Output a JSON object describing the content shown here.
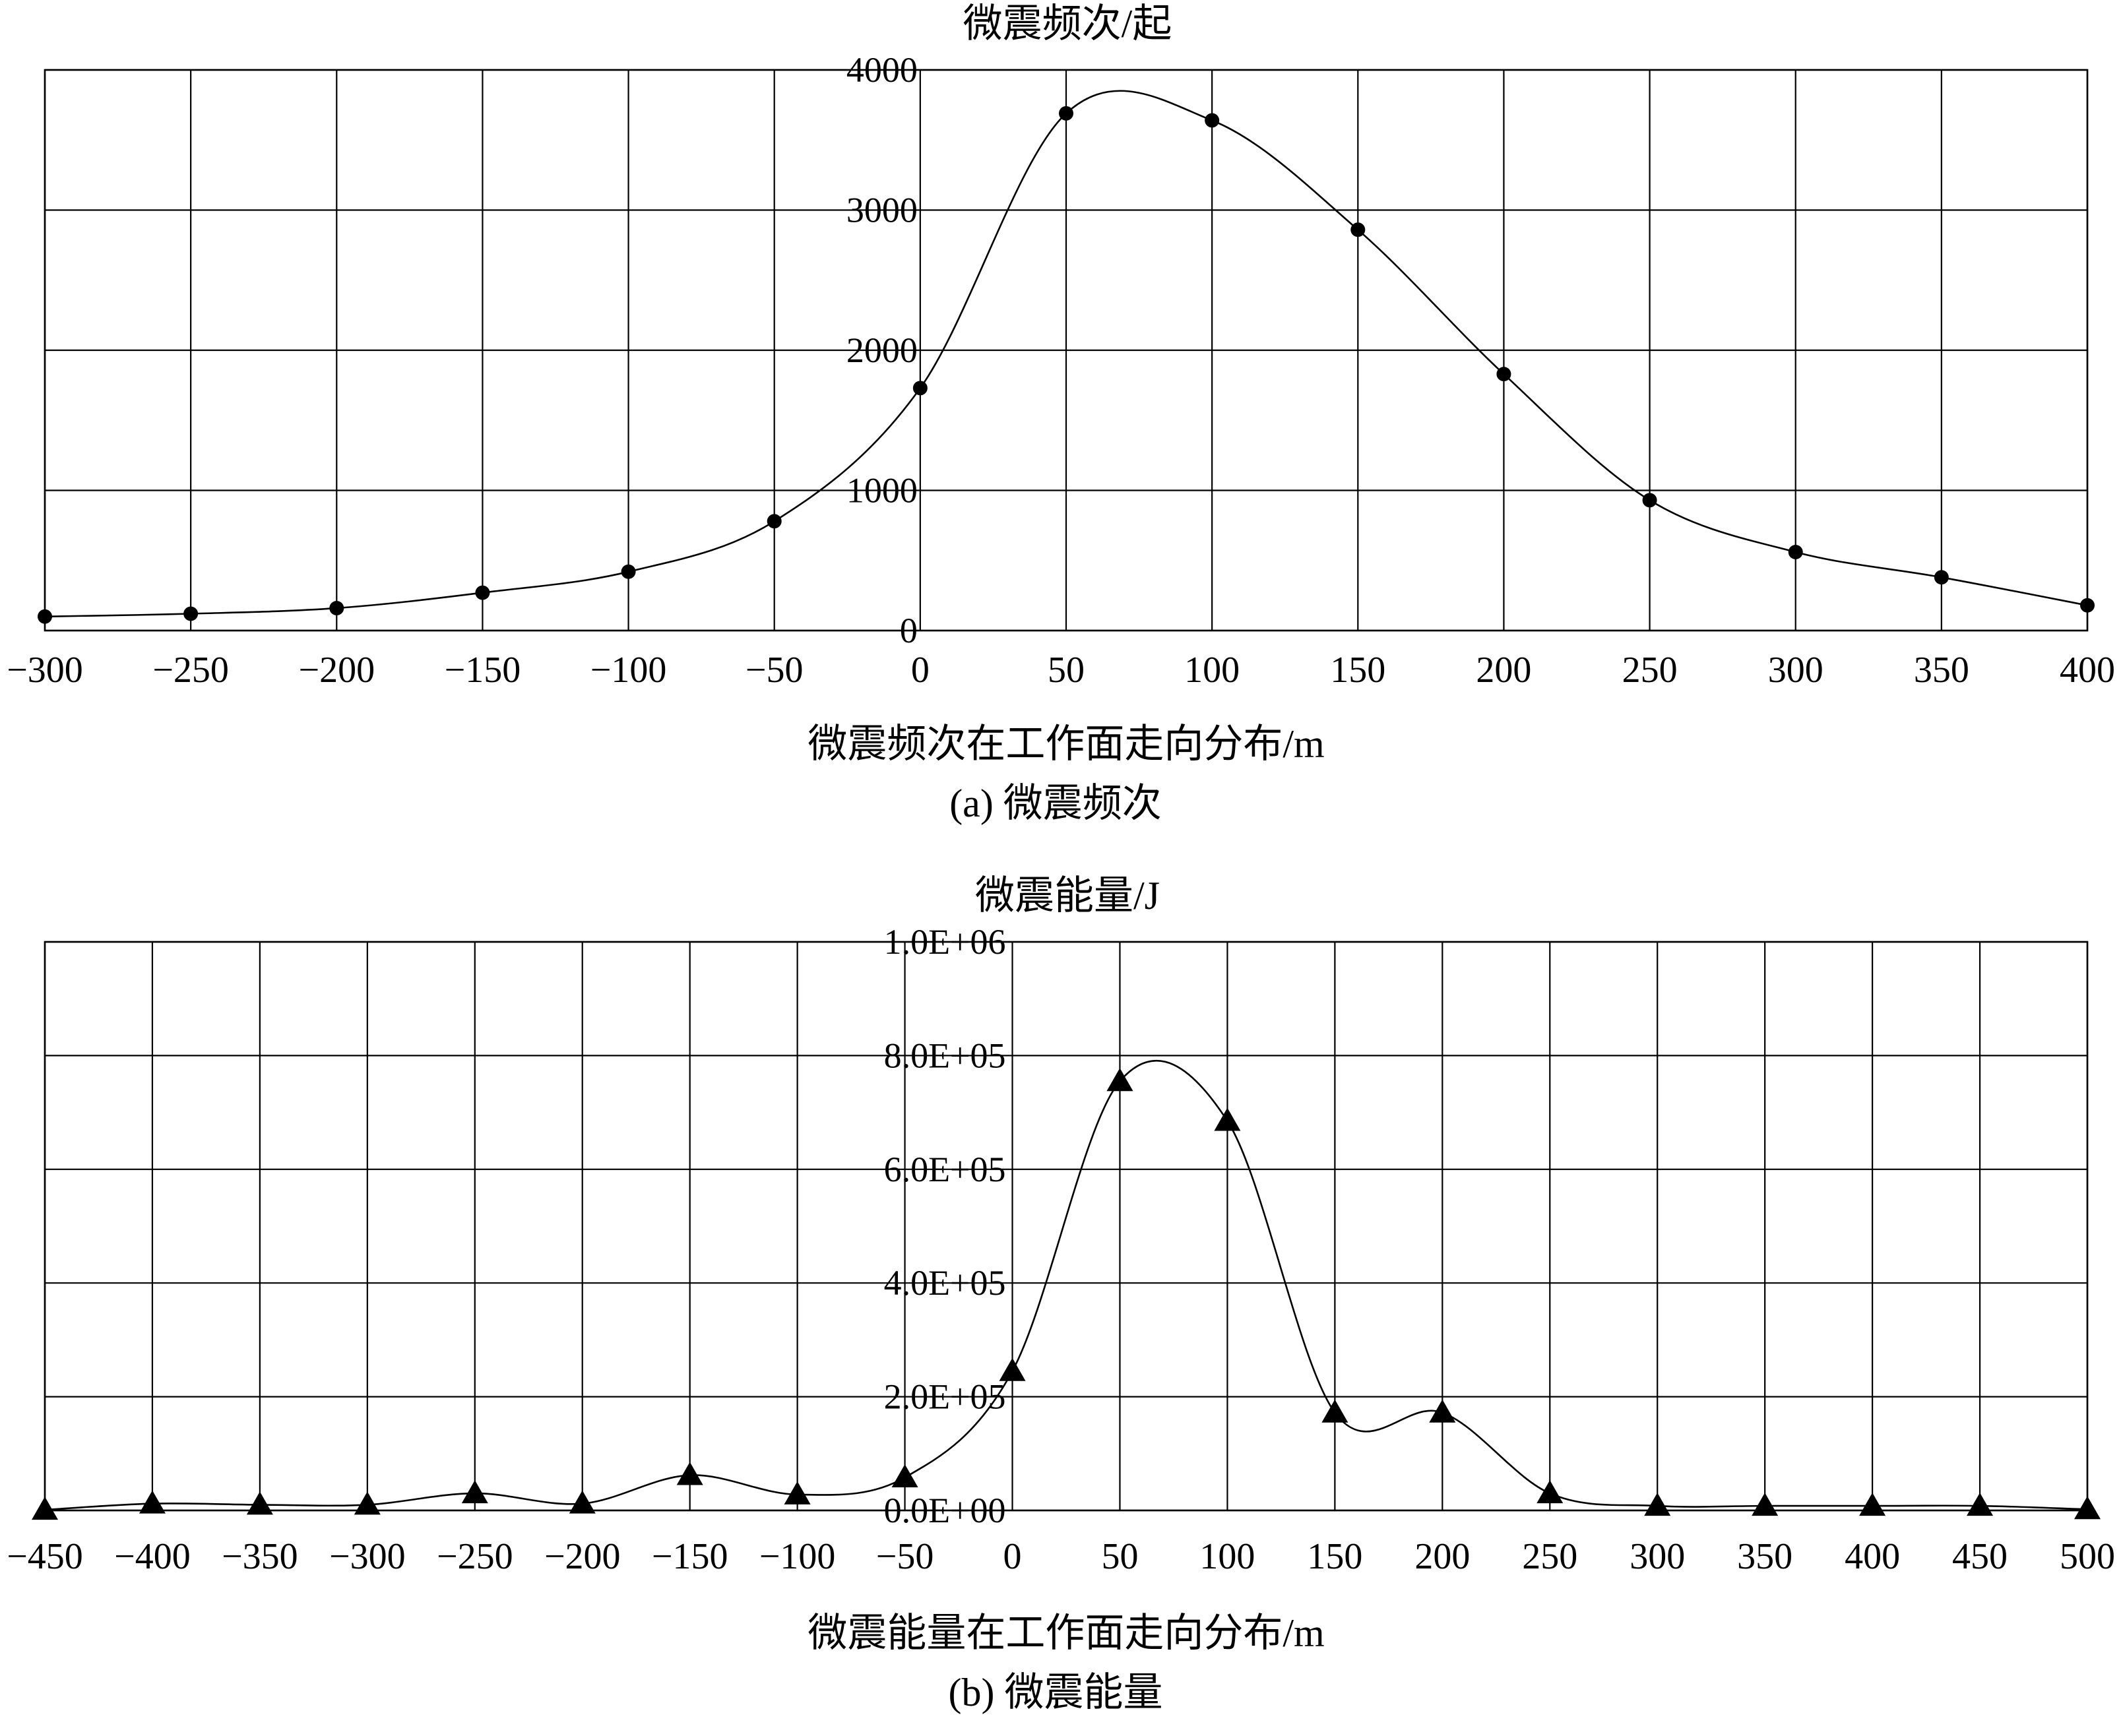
{
  "chart_data": [
    {
      "type": "line",
      "markers": "circle",
      "title": "(a) 微震频次",
      "xlabel": "微震频次在工作面走向分布/m",
      "ylabel": "微震频次/起",
      "x": [
        -300,
        -250,
        -200,
        -150,
        -100,
        -50,
        0,
        50,
        100,
        150,
        200,
        250,
        300,
        350,
        400
      ],
      "values": [
        100,
        120,
        160,
        270,
        420,
        780,
        1730,
        3690,
        3640,
        2860,
        1830,
        930,
        560,
        380,
        180
      ],
      "xlim": [
        -300,
        400
      ],
      "ylim": [
        0,
        4000
      ],
      "xticks": [
        -300,
        -250,
        -200,
        -150,
        -100,
        -50,
        0,
        50,
        100,
        150,
        200,
        250,
        300,
        350,
        400
      ],
      "xtick_labels": [
        "−300",
        "−250",
        "−200",
        "−150",
        "−100",
        "−50",
        "0",
        "50",
        "100",
        "150",
        "200",
        "250",
        "300",
        "350",
        "400"
      ],
      "yticks": [
        0,
        1000,
        2000,
        3000,
        4000
      ],
      "ytick_labels": [
        "0",
        "1000",
        "2000",
        "3000",
        "4000"
      ],
      "grid": true
    },
    {
      "type": "line",
      "markers": "triangle",
      "title": "(b) 微震能量",
      "xlabel": "微震能量在工作面走向分布/m",
      "ylabel": "微震能量/J",
      "x": [
        -450,
        -400,
        -350,
        -300,
        -250,
        -200,
        -150,
        -100,
        -50,
        0,
        50,
        100,
        150,
        200,
        250,
        300,
        350,
        400,
        450,
        500
      ],
      "values": [
        1000,
        12000,
        10000,
        10000,
        30000,
        12000,
        62000,
        28000,
        58000,
        245000,
        755000,
        685000,
        172000,
        172000,
        30000,
        8000,
        8000,
        8000,
        8000,
        2000
      ],
      "xlim": [
        -450,
        500
      ],
      "ylim": [
        0,
        1000000
      ],
      "xticks": [
        -450,
        -400,
        -350,
        -300,
        -250,
        -200,
        -150,
        -100,
        -50,
        0,
        50,
        100,
        150,
        200,
        250,
        300,
        350,
        400,
        450,
        500
      ],
      "xtick_labels": [
        "−450",
        "−400",
        "−350",
        "−300",
        "−250",
        "−200",
        "−150",
        "−100",
        "−50",
        "0",
        "50",
        "100",
        "150",
        "200",
        "250",
        "300",
        "350",
        "400",
        "450",
        "500"
      ],
      "yticks": [
        0,
        200000,
        400000,
        600000,
        800000,
        1000000
      ],
      "ytick_labels": [
        "0.0E+00",
        "2.0E+05",
        "4.0E+05",
        "6.0E+05",
        "8.0E+05",
        "1.0E+06"
      ],
      "grid": true
    }
  ]
}
